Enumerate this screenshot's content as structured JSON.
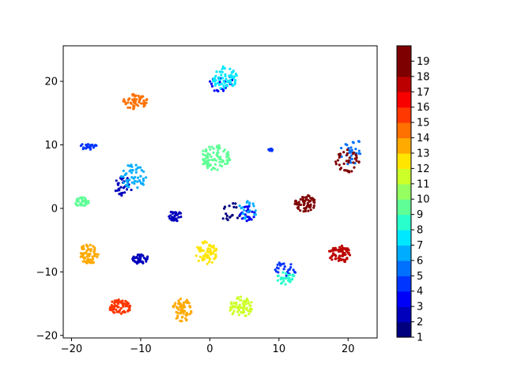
{
  "chart_data": {
    "type": "scatter",
    "title": "",
    "xlabel": "",
    "ylabel": "",
    "xlim": [
      -21.2,
      24.2
    ],
    "ylim": [
      -20.4,
      25.6
    ],
    "x_ticks": [
      -20,
      -10,
      0,
      10,
      20
    ],
    "y_ticks": [
      -20,
      -10,
      0,
      10,
      20
    ],
    "grid": false,
    "colormap": "jet",
    "colorbar": {
      "min": 1,
      "max": 20,
      "ticks": [
        1,
        2,
        3,
        4,
        5,
        6,
        7,
        8,
        9,
        10,
        11,
        12,
        13,
        14,
        15,
        16,
        17,
        18,
        19
      ],
      "colors": [
        "#00007f",
        "#0000bc",
        "#0000f9",
        "#0034ff",
        "#0070ff",
        "#00acff",
        "#00e8ff",
        "#29ffcd",
        "#60ff96",
        "#96ff60",
        "#cdff29",
        "#ffe500",
        "#ffaa00",
        "#ff7100",
        "#ff3700",
        "#f90000",
        "#bc0000",
        "#7f0000",
        "#7f0000"
      ]
    },
    "clusters": [
      {
        "label": 1,
        "cx": 3.0,
        "cy": -0.5,
        "rx": 1.6,
        "ry": 1.5,
        "n": 18
      },
      {
        "label": 2,
        "cx": -10.0,
        "cy": -8.0,
        "rx": 1.2,
        "ry": 0.8,
        "n": 40
      },
      {
        "label": 2,
        "cx": -5.0,
        "cy": -1.2,
        "rx": 1.0,
        "ry": 0.8,
        "n": 30
      },
      {
        "label": 2,
        "cx": -12.5,
        "cy": 3.5,
        "rx": 1.3,
        "ry": 1.5,
        "n": 30
      },
      {
        "label": 3,
        "cx": 5.5,
        "cy": -0.8,
        "rx": 1.2,
        "ry": 1.2,
        "n": 25
      },
      {
        "label": 3,
        "cx": 1.5,
        "cy": 19.8,
        "rx": 1.8,
        "ry": 1.5,
        "n": 20
      },
      {
        "label": 4,
        "cx": -17.5,
        "cy": 9.8,
        "rx": 1.2,
        "ry": 0.6,
        "n": 25
      },
      {
        "label": 4,
        "cx": 8.8,
        "cy": 9.2,
        "rx": 0.5,
        "ry": 0.2,
        "n": 10
      },
      {
        "label": 4,
        "cx": 11.0,
        "cy": -9.5,
        "rx": 1.6,
        "ry": 1.2,
        "n": 25
      },
      {
        "label": 5,
        "cx": 20.5,
        "cy": 9.0,
        "rx": 1.8,
        "ry": 2.2,
        "n": 30
      },
      {
        "label": 6,
        "cx": -11.0,
        "cy": 5.0,
        "rx": 1.8,
        "ry": 2.0,
        "n": 50
      },
      {
        "label": 6,
        "cx": 5.5,
        "cy": -0.2,
        "rx": 1.4,
        "ry": 1.5,
        "n": 20
      },
      {
        "label": 7,
        "cx": 2.2,
        "cy": 20.5,
        "rx": 1.8,
        "ry": 2.0,
        "n": 60
      },
      {
        "label": 8,
        "cx": 11.0,
        "cy": -11.0,
        "rx": 1.5,
        "ry": 1.0,
        "n": 30
      },
      {
        "label": 9,
        "cx": 0.8,
        "cy": 8.0,
        "rx": 2.2,
        "ry": 2.0,
        "n": 90
      },
      {
        "label": 9,
        "cx": -18.5,
        "cy": 1.0,
        "rx": 1.0,
        "ry": 0.8,
        "n": 40
      },
      {
        "label": 11,
        "cx": 4.5,
        "cy": -15.5,
        "rx": 1.8,
        "ry": 1.6,
        "n": 70
      },
      {
        "label": 12,
        "cx": -0.5,
        "cy": -7.0,
        "rx": 1.6,
        "ry": 1.8,
        "n": 70
      },
      {
        "label": 13,
        "cx": -17.5,
        "cy": -7.2,
        "rx": 1.5,
        "ry": 1.6,
        "n": 75
      },
      {
        "label": 13,
        "cx": -4.0,
        "cy": -16.0,
        "rx": 1.4,
        "ry": 1.8,
        "n": 65
      },
      {
        "label": 14,
        "cx": -10.8,
        "cy": 16.8,
        "rx": 1.8,
        "ry": 1.2,
        "n": 60
      },
      {
        "label": 15,
        "cx": -13.0,
        "cy": -15.5,
        "rx": 1.6,
        "ry": 1.2,
        "n": 70
      },
      {
        "label": 17,
        "cx": 18.8,
        "cy": -7.2,
        "rx": 1.6,
        "ry": 1.4,
        "n": 70
      },
      {
        "label": 18,
        "cx": 20.0,
        "cy": 7.5,
        "rx": 1.8,
        "ry": 1.8,
        "n": 40
      },
      {
        "label": 19,
        "cx": 13.8,
        "cy": 0.8,
        "rx": 1.5,
        "ry": 1.3,
        "n": 60
      }
    ]
  }
}
